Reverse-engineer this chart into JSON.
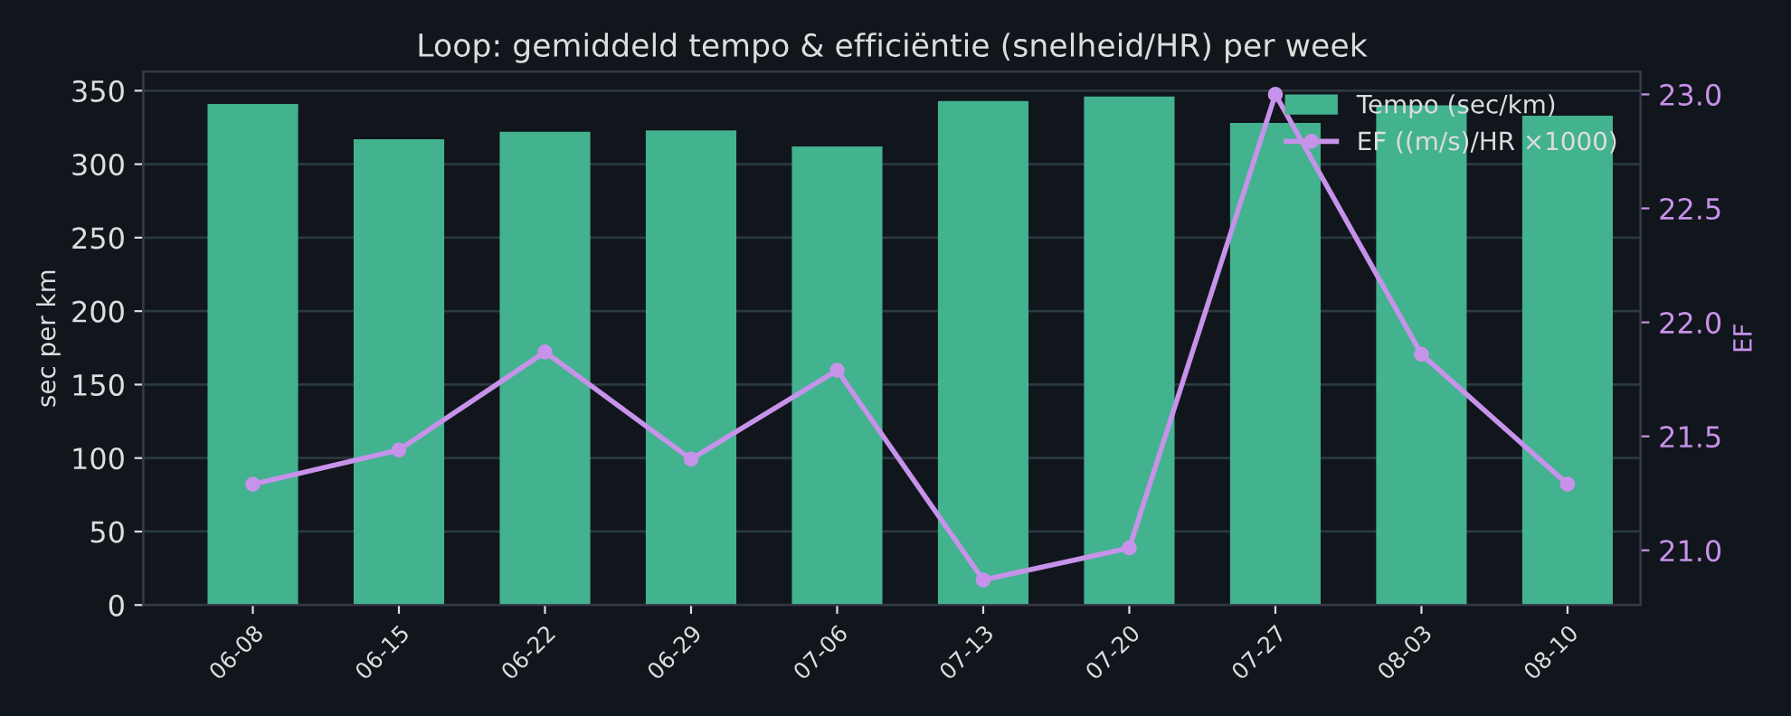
{
  "chart_data": {
    "type": "bar",
    "title": "Loop: gemiddeld tempo & efficiëntie (snelheid/HR) per week",
    "categories": [
      "06-08",
      "06-15",
      "06-22",
      "06-29",
      "07-06",
      "07-13",
      "07-20",
      "07-27",
      "08-03",
      "08-10"
    ],
    "series": [
      {
        "name": "Tempo (sec/km)",
        "color": "#43b28f",
        "values": [
          341,
          317,
          322,
          323,
          312,
          343,
          346,
          328,
          340,
          333
        ]
      },
      {
        "name": "EF ((m/s)/HR ×1000)",
        "type": "line",
        "axis": "y2",
        "color": "#c792ea",
        "marker": "circle",
        "values": [
          21.29,
          21.44,
          21.87,
          21.4,
          21.79,
          20.87,
          21.01,
          23.0,
          21.86,
          21.29
        ]
      }
    ],
    "ylabel": "sec per km",
    "y2label": "EF",
    "ylim": [
      0,
      363
    ],
    "yticks": [
      0,
      50,
      100,
      150,
      200,
      250,
      300,
      350
    ],
    "y2lim": [
      20.76,
      23.1
    ],
    "y2ticks": [
      {
        "value": 21.0,
        "label": "21.0"
      },
      {
        "value": 21.5,
        "label": "21.5"
      },
      {
        "value": 22.0,
        "label": "22.0"
      },
      {
        "value": 22.5,
        "label": "22.5"
      },
      {
        "value": 23.0,
        "label": "23.0"
      }
    ],
    "grid": "y",
    "legend": "top right"
  }
}
